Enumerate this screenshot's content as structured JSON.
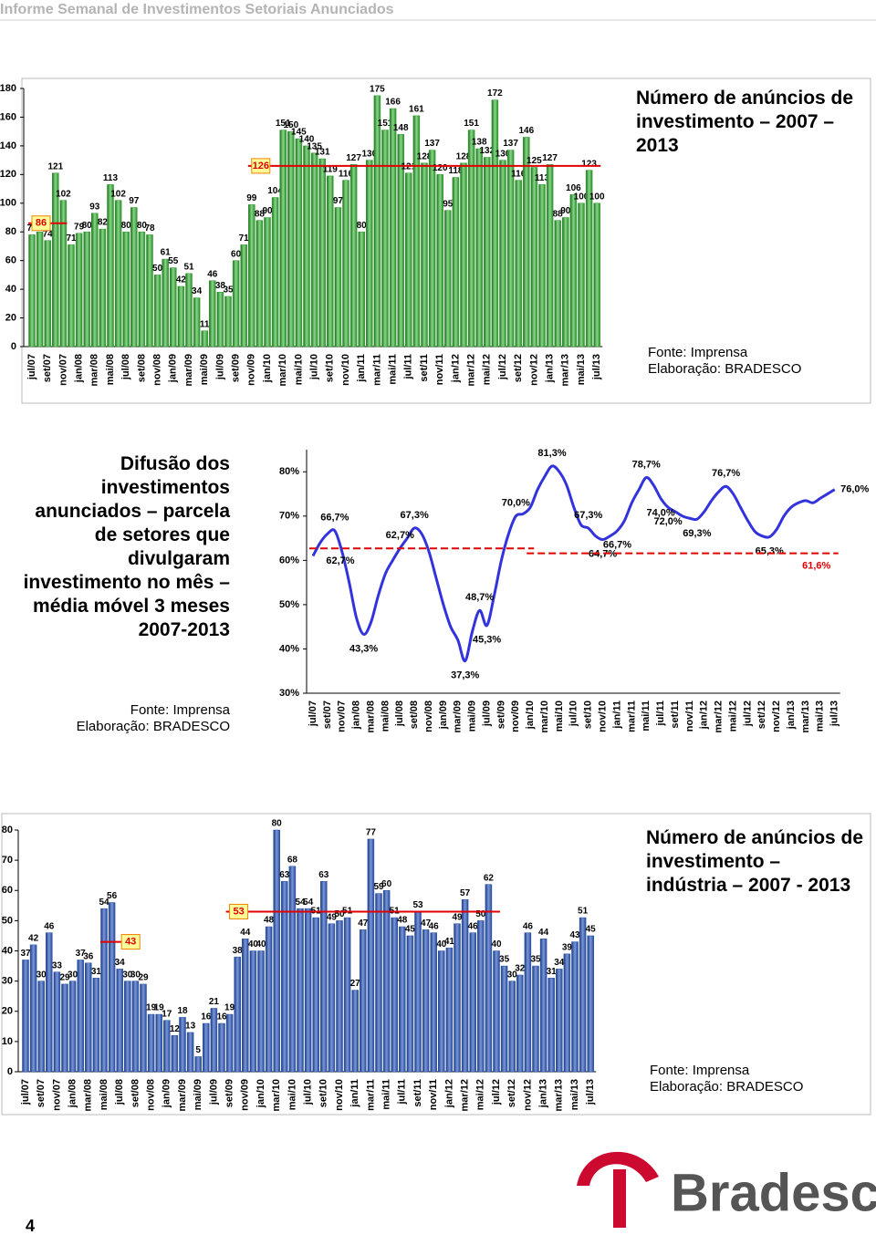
{
  "header": {
    "title": "Informe Semanal de Investimentos Setoriais Anunciados"
  },
  "footer": {
    "page": "4",
    "brand": "Bradesco"
  },
  "chart_data": [
    {
      "type": "bar",
      "title": "Número de anúncios de investimento – 2007 – 2013",
      "source": "Fonte: Imprensa",
      "credit": "Elaboração: BRADESCO",
      "categories": [
        "jul/07",
        null,
        "set/07",
        null,
        "nov/07",
        null,
        "jan/08",
        null,
        "mar/08",
        null,
        "mai/08",
        null,
        "jul/08",
        null,
        "set/08",
        null,
        "nov/08",
        null,
        "jan/09",
        null,
        "mar/09",
        null,
        "mai/09",
        null,
        "jul/09",
        null,
        "set/09",
        null,
        "nov/09",
        null,
        "jan/10",
        null,
        "mar/10",
        null,
        "mai/10",
        null,
        "jul/10",
        null,
        "set/10",
        null,
        "nov/10",
        null,
        "jan/11",
        null,
        "mar/11",
        null,
        "mai/11",
        null,
        "jul/11",
        null,
        "set/11",
        null,
        "nov/11",
        null,
        "jan/12",
        null,
        "mar/12",
        null,
        "mai/12",
        null,
        "jul/12",
        null,
        "set/12",
        null,
        "nov/12",
        null,
        "jan/13",
        null,
        "mar/13",
        null,
        "mai/13",
        null,
        "jul/13"
      ],
      "values": [
        78,
        80,
        74,
        121,
        102,
        71,
        79,
        80,
        93,
        82,
        113,
        102,
        80,
        97,
        80,
        78,
        50,
        61,
        55,
        42,
        51,
        34,
        11,
        46,
        38,
        35,
        60,
        71,
        99,
        88,
        90,
        104,
        151,
        150,
        145,
        140,
        135,
        131,
        119,
        97,
        116,
        127,
        80,
        130,
        175,
        151,
        166,
        148,
        121,
        161,
        128,
        137,
        120,
        95,
        118,
        128,
        151,
        138,
        132,
        172,
        130,
        137,
        116,
        146,
        125,
        113,
        127,
        88,
        90,
        106,
        100,
        123,
        100
      ],
      "color": "#2e9a2e",
      "ylim": [
        0,
        180
      ],
      "yticks": [
        0,
        20,
        40,
        60,
        80,
        100,
        120,
        140,
        160,
        180
      ],
      "reference_lines": [
        {
          "value": 86,
          "from": "jul/07",
          "to": "nov/07",
          "color": "#e00000"
        },
        {
          "value": 126,
          "from": "nov/09",
          "to": "jul/13",
          "color": "#e00000"
        }
      ]
    },
    {
      "type": "line",
      "title": "Difusão dos investimentos anunciados – parcela de setores que divulgaram investimento no mês – média móvel 3 meses 2007-2013",
      "source": "Fonte: Imprensa",
      "credit": "Elaboração: BRADESCO",
      "categories": [
        "jul/07",
        null,
        "set/07",
        null,
        "nov/07",
        null,
        "jan/08",
        null,
        "mar/08",
        null,
        "mai/08",
        null,
        "jul/08",
        null,
        "set/08",
        null,
        "nov/08",
        null,
        "jan/09",
        null,
        "mar/09",
        null,
        "mai/09",
        null,
        "jul/09",
        null,
        "set/09",
        null,
        "nov/09",
        null,
        "jan/10",
        null,
        "mar/10",
        null,
        "mai/10",
        null,
        "jul/10",
        null,
        "set/10",
        null,
        "nov/10",
        null,
        "jan/11",
        null,
        "mar/11",
        null,
        "mai/11",
        null,
        "jul/11",
        null,
        "set/11",
        null,
        "nov/11",
        null,
        "jan/12",
        null,
        "mar/12",
        null,
        "mai/12",
        null,
        "jul/12",
        null,
        "set/12",
        null,
        "nov/12",
        null,
        "jan/13",
        null,
        "mar/13",
        null,
        "mai/13",
        null,
        "jul/13"
      ],
      "values": [
        61,
        64,
        66,
        66.7,
        62,
        55,
        47,
        43.3,
        46,
        52,
        57,
        60,
        62.7,
        65,
        67.3,
        66,
        62,
        56,
        50,
        45,
        42,
        37.3,
        44,
        48.7,
        45.3,
        52,
        60,
        66,
        70,
        70.5,
        72,
        76,
        79,
        81.3,
        80,
        77,
        72,
        68,
        67.3,
        65.5,
        64.7,
        65.5,
        66.7,
        69,
        73,
        76,
        78.7,
        77,
        74,
        72,
        71,
        70,
        69.5,
        69.3,
        71,
        73.5,
        75.5,
        76.7,
        75,
        72,
        69,
        66.5,
        65.5,
        65.3,
        67,
        70,
        72,
        73,
        73.5,
        73,
        74,
        75,
        76
      ],
      "value_labels": [
        null,
        null,
        null,
        "66,7%",
        null,
        null,
        null,
        "43,3%",
        null,
        null,
        null,
        null,
        "62,7%",
        null,
        "67,3%",
        null,
        null,
        null,
        null,
        null,
        null,
        "37,3%",
        null,
        "48,7%",
        "45,3%",
        null,
        null,
        null,
        "70,0%",
        null,
        null,
        null,
        null,
        "81,3%",
        null,
        null,
        null,
        null,
        "67,3%",
        null,
        "64,7%",
        null,
        "66,7%",
        null,
        null,
        null,
        "78,7%",
        null,
        "74,0%",
        "72,0%",
        null,
        null,
        null,
        "69,3%",
        null,
        null,
        null,
        "76,7%",
        null,
        null,
        null,
        null,
        null,
        "65,3%",
        null,
        null,
        null,
        null,
        null,
        null,
        null,
        null,
        "76,0%"
      ],
      "color": "#3333dd",
      "ylim": [
        30,
        85
      ],
      "yticks": [
        {
          "value": 30,
          "label": "30%"
        },
        {
          "value": 40,
          "label": "40%"
        },
        {
          "value": 50,
          "label": "50%"
        },
        {
          "value": 60,
          "label": "60%"
        },
        {
          "value": 70,
          "label": "70%"
        },
        {
          "value": 80,
          "label": "80%"
        }
      ],
      "reference_lines": [
        {
          "value": 62.7,
          "label": "62,7%",
          "from": "jul/07",
          "to": "jan/10",
          "color": "#e00000"
        },
        {
          "value": 61.6,
          "label": "61,6%",
          "from": "jan/10",
          "to": "jul/13",
          "color": "#e00000"
        }
      ]
    },
    {
      "type": "bar",
      "title": "Número de anúncios de investimento – indústria – 2007 - 2013",
      "source": "Fonte: Imprensa",
      "credit": "Elaboração: BRADESCO",
      "categories": [
        "jul/07",
        null,
        "set/07",
        null,
        "nov/07",
        null,
        "jan/08",
        null,
        "mar/08",
        null,
        "mai/08",
        null,
        "jul/08",
        null,
        "set/08",
        null,
        "nov/08",
        null,
        "jan/09",
        null,
        "mar/09",
        null,
        "mai/09",
        null,
        "jul/09",
        null,
        "set/09",
        null,
        "nov/09",
        null,
        "jan/10",
        null,
        "mar/10",
        null,
        "mai/10",
        null,
        "jul/10",
        null,
        "set/10",
        null,
        "nov/10",
        null,
        "jan/11",
        null,
        "mar/11",
        null,
        "mai/11",
        null,
        "jul/11",
        null,
        "set/11",
        null,
        "nov/11",
        null,
        "jan/12",
        null,
        "mar/12",
        null,
        "mai/12",
        null,
        "jul/12",
        null,
        "set/12",
        null,
        "nov/12",
        null,
        "jan/13",
        null,
        "mar/13",
        null,
        "mai/13",
        null,
        "jul/13"
      ],
      "values": [
        37,
        42,
        30,
        46,
        33,
        29,
        30,
        37,
        36,
        31,
        54,
        56,
        34,
        30,
        30,
        29,
        19,
        19,
        17,
        12,
        18,
        13,
        5,
        16,
        21,
        16,
        19,
        38,
        44,
        40,
        40,
        48,
        80,
        63,
        68,
        54,
        54,
        51,
        63,
        49,
        50,
        51,
        27,
        47,
        77,
        59,
        60,
        51,
        48,
        45,
        53,
        47,
        46,
        40,
        41,
        49,
        57,
        46,
        50,
        62,
        40,
        35,
        30,
        32,
        46,
        35,
        44,
        31,
        34,
        39,
        43,
        51,
        45
      ],
      "color": "#2a4fa0",
      "ylim": [
        0,
        80
      ],
      "yticks": [
        0,
        10,
        20,
        30,
        40,
        50,
        60,
        70,
        80
      ],
      "reference_lines": [
        {
          "value": 43,
          "from": "mai/08",
          "to": "jul/08",
          "color": "#e00000"
        },
        {
          "value": 53,
          "from": "set/09",
          "to": "jul/12",
          "color": "#e00000"
        }
      ]
    }
  ]
}
